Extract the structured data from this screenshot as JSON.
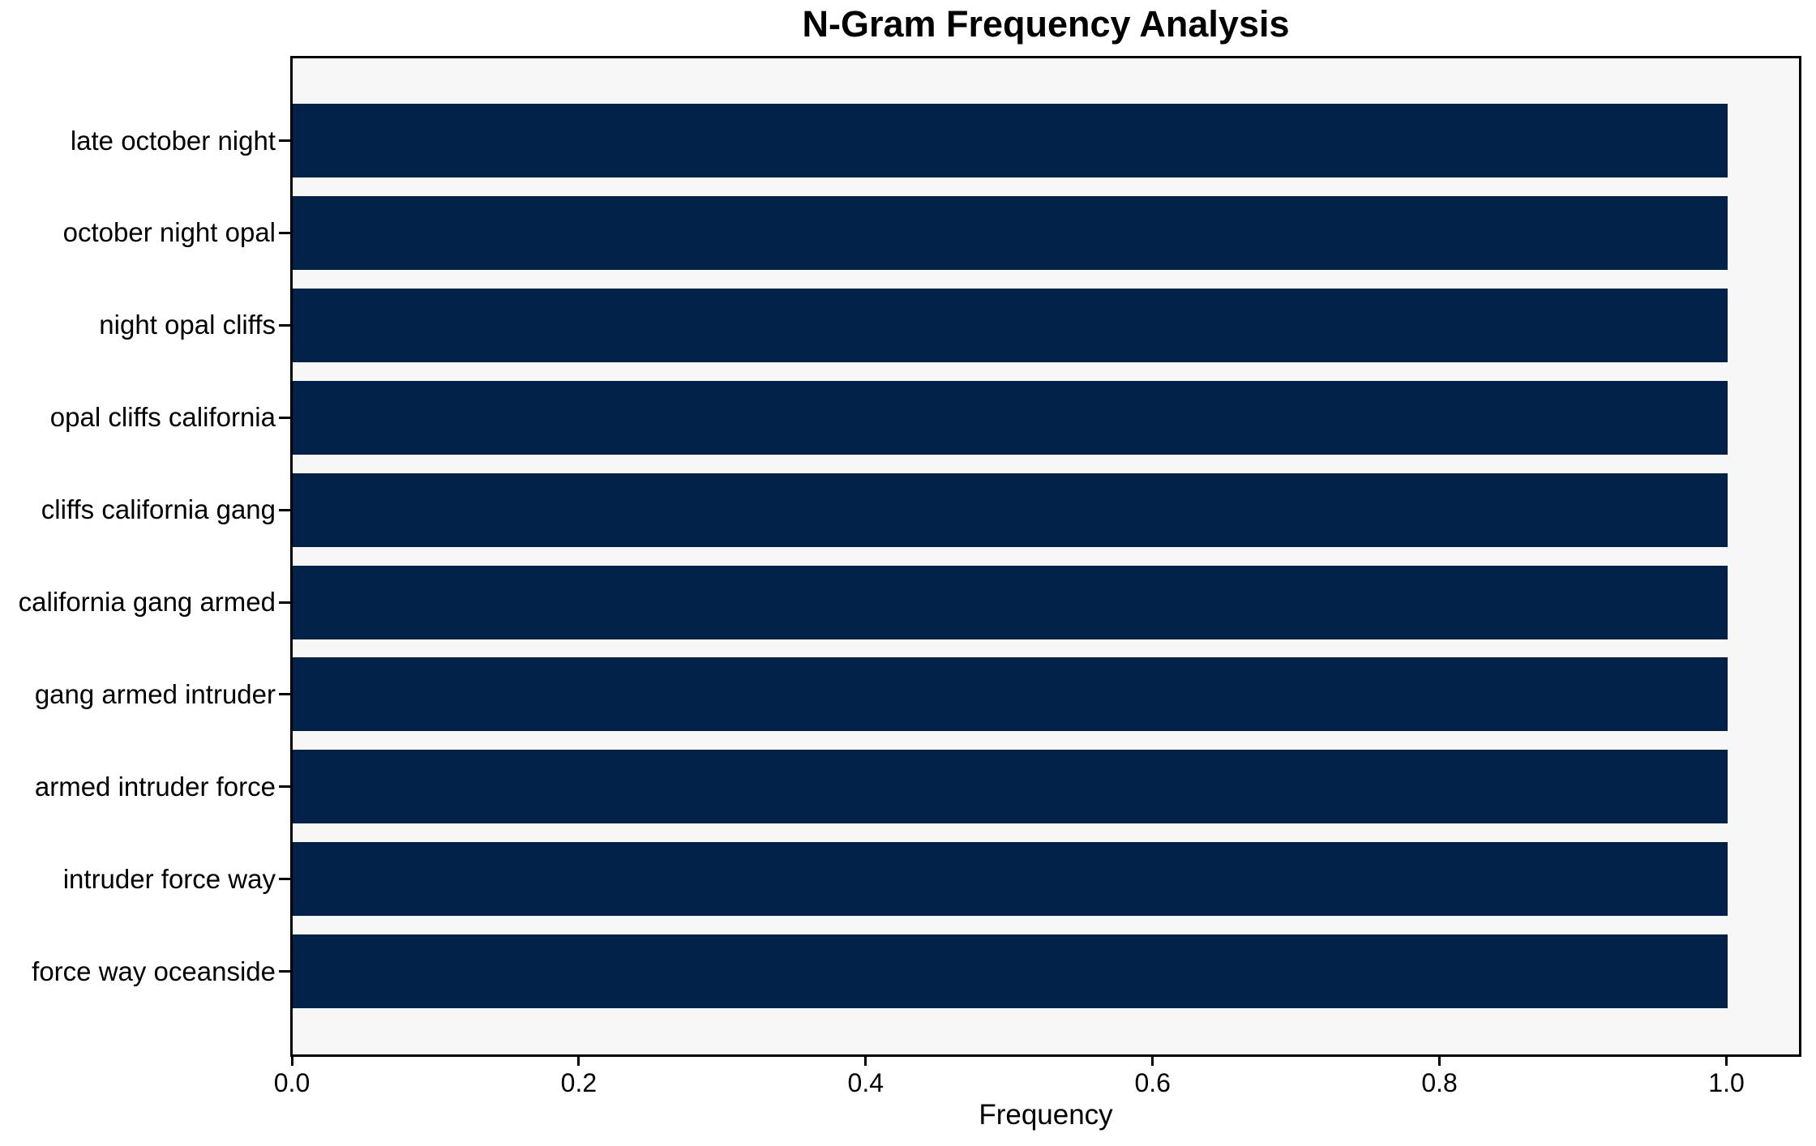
{
  "chart_data": {
    "type": "bar",
    "orientation": "horizontal",
    "title": "N-Gram Frequency Analysis",
    "xlabel": "Frequency",
    "ylabel": "",
    "categories": [
      "late october night",
      "october night opal",
      "night opal cliffs",
      "opal cliffs california",
      "cliffs california gang",
      "california gang armed",
      "gang armed intruder",
      "armed intruder force",
      "intruder force way",
      "force way oceanside"
    ],
    "values": [
      1.0,
      1.0,
      1.0,
      1.0,
      1.0,
      1.0,
      1.0,
      1.0,
      1.0,
      1.0
    ],
    "xlim": [
      0,
      1.05
    ],
    "xticks": [
      "0.0",
      "0.2",
      "0.4",
      "0.6",
      "0.8",
      "1.0"
    ],
    "xtick_values": [
      0.0,
      0.2,
      0.4,
      0.6,
      0.8,
      1.0
    ],
    "bar_color": "#02224a",
    "plot_bg": "#f7f7f7",
    "figure_bg": "#ffffff",
    "text_color": "#000000",
    "grid": false,
    "legend": null
  }
}
